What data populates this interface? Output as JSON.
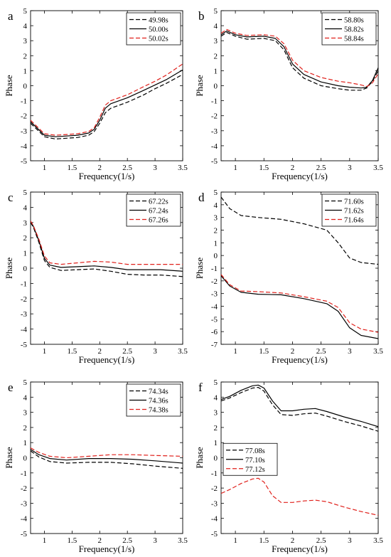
{
  "chart_data": [
    {
      "type": "line",
      "panel_label": "a",
      "xlabel": "Frequency(1/s)",
      "ylabel": "Phase",
      "xlim": [
        0.75,
        3.5
      ],
      "ylim": [
        -5,
        5
      ],
      "xticks": [
        1,
        1.5,
        2,
        2.5,
        3,
        3.5
      ],
      "yticks": [
        -5,
        -4,
        -3,
        -2,
        -1,
        0,
        1,
        2,
        3,
        4,
        5
      ],
      "grid": false,
      "legend_position": "top-right",
      "x": [
        0.75,
        1.0,
        1.2,
        1.4,
        1.6,
        1.8,
        1.9,
        2.0,
        2.1,
        2.2,
        2.5,
        2.8,
        3.0,
        3.2,
        3.5
      ],
      "series": [
        {
          "name": "49.98s",
          "color": "#000000",
          "dash": "dashed",
          "values": [
            -2.5,
            -3.4,
            -3.55,
            -3.5,
            -3.45,
            -3.3,
            -3.05,
            -2.5,
            -1.8,
            -1.5,
            -1.1,
            -0.6,
            -0.2,
            0.15,
            0.75
          ]
        },
        {
          "name": "50.00s",
          "color": "#000000",
          "dash": "solid",
          "values": [
            -2.4,
            -3.3,
            -3.4,
            -3.35,
            -3.3,
            -3.15,
            -2.9,
            -2.3,
            -1.5,
            -1.2,
            -0.8,
            -0.3,
            0.05,
            0.4,
            1.05
          ]
        },
        {
          "name": "50.02s",
          "color": "#e0201b",
          "dash": "dashed",
          "values": [
            -2.3,
            -3.2,
            -3.3,
            -3.25,
            -3.2,
            -3.05,
            -2.8,
            -2.1,
            -1.3,
            -1.0,
            -0.6,
            -0.05,
            0.3,
            0.7,
            1.45
          ]
        }
      ]
    },
    {
      "type": "line",
      "panel_label": "b",
      "xlabel": "Frequency(1/s)",
      "ylabel": "Phase",
      "xlim": [
        0.75,
        3.5
      ],
      "ylim": [
        -5,
        5
      ],
      "xticks": [
        1,
        1.5,
        2,
        2.5,
        3,
        3.5
      ],
      "yticks": [
        -5,
        -4,
        -3,
        -2,
        -1,
        0,
        1,
        2,
        3,
        4,
        5
      ],
      "grid": false,
      "legend_position": "top-right",
      "x": [
        0.75,
        0.85,
        1.0,
        1.2,
        1.5,
        1.7,
        1.85,
        2.0,
        2.2,
        2.5,
        2.8,
        3.0,
        3.2,
        3.3,
        3.4,
        3.5
      ],
      "series": [
        {
          "name": "58.80s",
          "color": "#000000",
          "dash": "dashed",
          "values": [
            3.3,
            3.55,
            3.3,
            3.1,
            3.15,
            3.0,
            2.4,
            1.2,
            0.5,
            0.0,
            -0.2,
            -0.3,
            -0.3,
            -0.15,
            0.3,
            1.0
          ]
        },
        {
          "name": "58.82s",
          "color": "#000000",
          "dash": "solid",
          "values": [
            3.4,
            3.65,
            3.4,
            3.25,
            3.3,
            3.15,
            2.6,
            1.45,
            0.75,
            0.25,
            0.0,
            -0.1,
            -0.15,
            -0.1,
            0.35,
            1.2
          ]
        },
        {
          "name": "58.84s",
          "color": "#e0201b",
          "dash": "dashed",
          "values": [
            3.5,
            3.75,
            3.5,
            3.35,
            3.4,
            3.3,
            2.8,
            1.7,
            1.0,
            0.55,
            0.3,
            0.2,
            0.05,
            -0.05,
            0.2,
            0.8
          ]
        }
      ]
    },
    {
      "type": "line",
      "panel_label": "c",
      "xlabel": "Frequency(1/s)",
      "ylabel": "Phase",
      "xlim": [
        0.75,
        3.5
      ],
      "ylim": [
        -5,
        5
      ],
      "xticks": [
        1,
        1.5,
        2,
        2.5,
        3,
        3.5
      ],
      "yticks": [
        -5,
        -4,
        -3,
        -2,
        -1,
        0,
        1,
        2,
        3,
        4,
        5
      ],
      "grid": false,
      "legend_position": "top-right",
      "x": [
        0.75,
        0.8,
        0.9,
        1.0,
        1.1,
        1.3,
        1.6,
        1.9,
        2.2,
        2.5,
        2.8,
        3.1,
        3.5
      ],
      "series": [
        {
          "name": "67.22s",
          "color": "#000000",
          "dash": "dashed",
          "values": [
            3.0,
            2.7,
            1.7,
            0.5,
            0.05,
            -0.15,
            -0.1,
            -0.05,
            -0.2,
            -0.4,
            -0.45,
            -0.45,
            -0.55
          ]
        },
        {
          "name": "67.24s",
          "color": "#000000",
          "dash": "solid",
          "values": [
            3.05,
            2.75,
            1.8,
            0.65,
            0.2,
            0.05,
            0.1,
            0.15,
            0.05,
            -0.1,
            -0.1,
            -0.1,
            -0.2
          ]
        },
        {
          "name": "67.26s",
          "color": "#e0201b",
          "dash": "dashed",
          "values": [
            3.1,
            2.8,
            1.9,
            0.8,
            0.35,
            0.25,
            0.35,
            0.45,
            0.4,
            0.25,
            0.25,
            0.25,
            0.25
          ]
        }
      ]
    },
    {
      "type": "line",
      "panel_label": "d",
      "xlabel": "Frequency(1/s)",
      "ylabel": "Phase",
      "xlim": [
        0.75,
        3.5
      ],
      "ylim": [
        -7,
        5
      ],
      "xticks": [
        1,
        1.5,
        2,
        2.5,
        3,
        3.5
      ],
      "yticks": [
        -7,
        -6,
        -5,
        -4,
        -3,
        -2,
        -1,
        0,
        1,
        2,
        3,
        4,
        5
      ],
      "grid": false,
      "legend_position": "top-right",
      "x": [
        0.75,
        0.9,
        1.1,
        1.4,
        1.8,
        2.2,
        2.6,
        2.8,
        3.0,
        3.2,
        3.5
      ],
      "series": [
        {
          "name": "71.60s",
          "color": "#000000",
          "dash": "dashed",
          "values": [
            4.6,
            3.7,
            3.15,
            3.0,
            2.85,
            2.5,
            2.0,
            1.0,
            -0.2,
            -0.55,
            -0.7
          ]
        },
        {
          "name": "71.62s",
          "color": "#000000",
          "dash": "solid",
          "values": [
            -1.6,
            -2.4,
            -2.9,
            -3.05,
            -3.1,
            -3.4,
            -3.8,
            -4.4,
            -5.7,
            -6.3,
            -6.55
          ]
        },
        {
          "name": "71.64s",
          "color": "#e0201b",
          "dash": "dashed",
          "values": [
            -1.5,
            -2.3,
            -2.8,
            -2.85,
            -2.95,
            -3.25,
            -3.6,
            -4.1,
            -5.3,
            -5.8,
            -6.05
          ]
        }
      ]
    },
    {
      "type": "line",
      "panel_label": "e",
      "xlabel": "Frequency(1/s)",
      "ylabel": "Phase",
      "xlim": [
        0.75,
        3.5
      ],
      "ylim": [
        -5,
        5
      ],
      "xticks": [
        1,
        1.5,
        2,
        2.5,
        3,
        3.5
      ],
      "yticks": [
        -5,
        -4,
        -3,
        -2,
        -1,
        0,
        1,
        2,
        3,
        4,
        5
      ],
      "grid": false,
      "legend_position": "top-right",
      "x": [
        0.75,
        0.9,
        1.1,
        1.4,
        1.8,
        2.2,
        2.6,
        3.0,
        3.5
      ],
      "series": [
        {
          "name": "74.34s",
          "color": "#000000",
          "dash": "dashed",
          "values": [
            0.45,
            0.05,
            -0.25,
            -0.35,
            -0.3,
            -0.3,
            -0.4,
            -0.55,
            -0.7
          ]
        },
        {
          "name": "74.36s",
          "color": "#000000",
          "dash": "solid",
          "values": [
            0.55,
            0.2,
            -0.05,
            -0.15,
            -0.05,
            -0.05,
            -0.1,
            -0.2,
            -0.35
          ]
        },
        {
          "name": "74.38s",
          "color": "#e0201b",
          "dash": "dashed",
          "values": [
            0.65,
            0.35,
            0.1,
            0.0,
            0.1,
            0.2,
            0.2,
            0.15,
            0.1
          ]
        }
      ]
    },
    {
      "type": "line",
      "panel_label": "f",
      "xlabel": "Frequency(1/s)",
      "ylabel": "Phase",
      "xlim": [
        0.75,
        3.5
      ],
      "ylim": [
        -5,
        5
      ],
      "xticks": [
        1,
        1.5,
        2,
        2.5,
        3,
        3.5
      ],
      "yticks": [
        -5,
        -4,
        -3,
        -2,
        -1,
        0,
        1,
        2,
        3,
        4,
        5
      ],
      "grid": false,
      "legend_position": "center-left",
      "x": [
        0.75,
        0.9,
        1.1,
        1.3,
        1.4,
        1.5,
        1.65,
        1.8,
        2.0,
        2.2,
        2.4,
        2.6,
        2.9,
        3.2,
        3.5
      ],
      "series": [
        {
          "name": "77.08s",
          "color": "#000000",
          "dash": "dashed",
          "values": [
            3.75,
            3.95,
            4.3,
            4.6,
            4.65,
            4.4,
            3.5,
            2.85,
            2.8,
            2.9,
            2.95,
            2.75,
            2.4,
            2.1,
            1.75
          ]
        },
        {
          "name": "77.10s",
          "color": "#000000",
          "dash": "solid",
          "values": [
            3.85,
            4.05,
            4.45,
            4.75,
            4.8,
            4.6,
            3.75,
            3.1,
            3.1,
            3.2,
            3.25,
            3.05,
            2.7,
            2.4,
            2.05
          ]
        },
        {
          "name": "77.12s",
          "color": "#e0201b",
          "dash": "dashed",
          "values": [
            -2.35,
            -2.1,
            -1.7,
            -1.4,
            -1.35,
            -1.6,
            -2.5,
            -2.95,
            -2.95,
            -2.85,
            -2.8,
            -2.9,
            -3.25,
            -3.55,
            -3.8
          ]
        }
      ]
    }
  ]
}
